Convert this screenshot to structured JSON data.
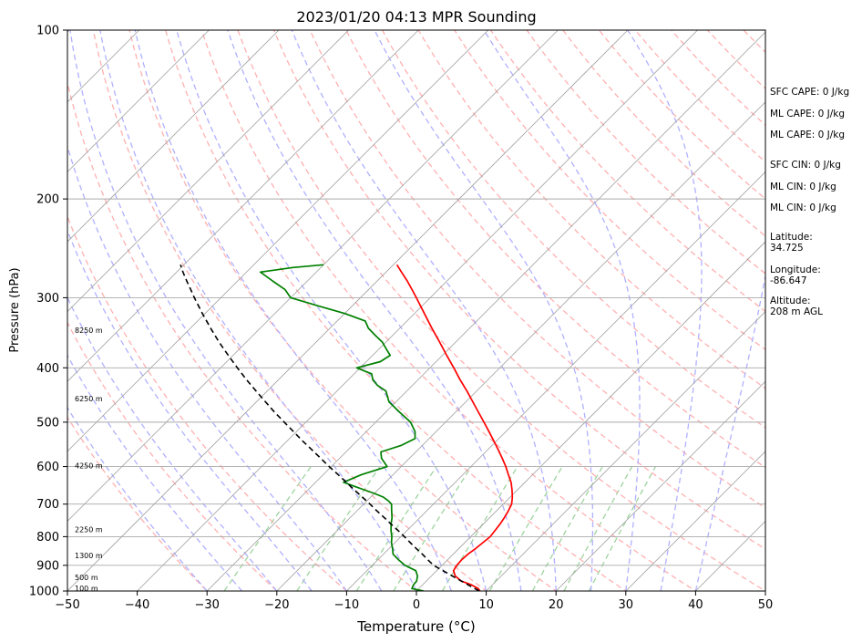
{
  "chart_data": {
    "type": "line",
    "subtype": "skew-T log-P sounding diagram",
    "title": "2023/01/20 04:13 MPR Sounding",
    "xlabel": "Temperature (°C)",
    "ylabel": "Pressure (hPa)",
    "xlim": [
      -50,
      50
    ],
    "ylim": [
      1000,
      100
    ],
    "y_scale": "log",
    "x_ticks": [
      -50,
      -40,
      -30,
      -20,
      -10,
      0,
      10,
      20,
      30,
      40,
      50
    ],
    "x_tick_labels": [
      "−50",
      "−40",
      "−30",
      "−20",
      "−10",
      "0",
      "10",
      "20",
      "30",
      "40",
      "50"
    ],
    "y_ticks": [
      1000,
      900,
      800,
      700,
      600,
      500,
      400,
      300,
      200,
      100
    ],
    "y_tick_labels": [
      "1000",
      "900",
      "800",
      "700",
      "600",
      "500",
      "400",
      "300",
      "200",
      "100"
    ],
    "grid": true,
    "colors": {
      "temperature": "#ff0000",
      "dewpoint": "#008000",
      "parcel": "#000000",
      "isotherm": "#a0a0a0",
      "dry_adiabat": "#ffb0b0",
      "moist_adiabat": "#b0b0ff",
      "mixing_ratio": "#9ed49e"
    },
    "series": [
      {
        "key": "temperature",
        "style": "solid",
        "pressure": [
          1000,
          990,
          975,
          960,
          940,
          920,
          900,
          880,
          860,
          840,
          820,
          800,
          780,
          760,
          740,
          720,
          700,
          680,
          660,
          640,
          620,
          600,
          580,
          560,
          540,
          520,
          500,
          480,
          460,
          440,
          420,
          400,
          380,
          360,
          340,
          320,
          300,
          290,
          280,
          270,
          262
        ],
        "values": [
          9.1,
          8.5,
          7.0,
          5.0,
          3.4,
          2.4,
          2.1,
          2.0,
          2.1,
          2.4,
          2.6,
          2.8,
          2.6,
          2.4,
          2.1,
          1.7,
          1.2,
          0.3,
          -0.8,
          -2.0,
          -3.5,
          -5.0,
          -6.7,
          -8.5,
          -10.4,
          -12.4,
          -14.5,
          -16.7,
          -19.0,
          -21.4,
          -24.0,
          -26.6,
          -29.4,
          -32.3,
          -35.4,
          -38.6,
          -42.0,
          -43.8,
          -45.7,
          -47.8,
          -49.5
        ]
      },
      {
        "key": "dewpoint",
        "style": "solid",
        "pressure": [
          1000,
          990,
          975,
          960,
          940,
          920,
          900,
          880,
          860,
          840,
          820,
          800,
          780,
          760,
          740,
          720,
          700,
          690,
          680,
          670,
          660,
          650,
          640,
          620,
          600,
          580,
          565,
          550,
          535,
          520,
          500,
          480,
          460,
          440,
          430,
          420,
          410,
          400,
          390,
          380,
          370,
          360,
          350,
          340,
          330,
          320,
          310,
          300,
          290,
          280,
          270,
          265,
          262
        ],
        "values": [
          1.0,
          -1.0,
          -1.3,
          -1.4,
          -2.0,
          -3.0,
          -5.3,
          -7.0,
          -8.6,
          -9.5,
          -10.5,
          -11.3,
          -12.3,
          -13.2,
          -14.0,
          -15.0,
          -16.0,
          -17.0,
          -18.2,
          -20.0,
          -22.0,
          -24.0,
          -26.0,
          -24.5,
          -22.0,
          -24.0,
          -25.0,
          -23.0,
          -22.0,
          -23.0,
          -25.0,
          -28.0,
          -31.0,
          -33.0,
          -35.0,
          -36.5,
          -37.5,
          -40.5,
          -38.0,
          -37.5,
          -39.0,
          -40.5,
          -42.5,
          -44.5,
          -46.0,
          -50.0,
          -55.0,
          -60.0,
          -62.0,
          -65.0,
          -68.0,
          -64.0,
          -60.0
        ]
      },
      {
        "key": "parcel",
        "style": "dashed",
        "pressure": [
          1000,
          950,
          900,
          880,
          860,
          840,
          820,
          800,
          780,
          760,
          740,
          720,
          700,
          680,
          660,
          640,
          620,
          600,
          580,
          560,
          540,
          520,
          500,
          480,
          460,
          440,
          420,
          400,
          380,
          360,
          340,
          320,
          300,
          290,
          280,
          270,
          262
        ],
        "values": [
          9.0,
          4.0,
          -1.2,
          -2.8,
          -4.4,
          -6.1,
          -7.8,
          -9.5,
          -11.3,
          -13.2,
          -15.1,
          -17.1,
          -19.1,
          -21.2,
          -23.4,
          -25.6,
          -27.9,
          -30.3,
          -32.7,
          -35.2,
          -37.8,
          -40.4,
          -43.1,
          -45.9,
          -48.7,
          -51.6,
          -54.6,
          -57.6,
          -60.7,
          -63.9,
          -67.1,
          -70.4,
          -73.8,
          -75.5,
          -77.3,
          -79.1,
          -80.5
        ]
      }
    ],
    "height_labels": [
      {
        "text": "100 m",
        "pressure": 988
      },
      {
        "text": "500 m",
        "pressure": 945
      },
      {
        "text": "1300 m",
        "pressure": 864
      },
      {
        "text": "2250 m",
        "pressure": 777
      },
      {
        "text": "4250 m",
        "pressure": 598
      },
      {
        "text": "6250 m",
        "pressure": 454
      },
      {
        "text": "8250 m",
        "pressure": 343
      }
    ],
    "annotations": [
      "SFC CAPE: 0 J/kg",
      "ML CAPE: 0 J/kg",
      "ML CAPE: 0 J/kg",
      "SFC CIN: 0 J/kg",
      "ML CIN: 0 J/kg",
      "ML CIN: 0 J/kg",
      "Latitude:",
      "34.725",
      "Longitude:",
      "-86.647",
      "Altitude:",
      "208 m AGL"
    ]
  }
}
